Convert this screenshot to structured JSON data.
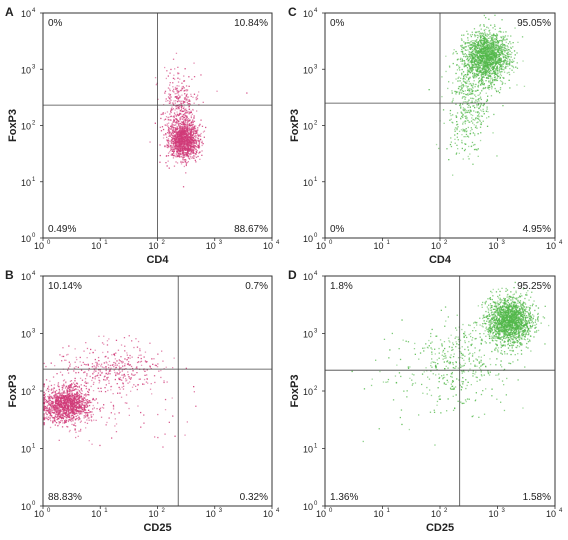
{
  "chart_data": [
    {
      "panel": "A",
      "type": "scatter",
      "xlabel": "CD4",
      "ylabel": "FoxP3",
      "xscale": "log",
      "yscale": "log",
      "xlim": [
        1,
        10000
      ],
      "ylim": [
        1,
        10000
      ],
      "xticks": [
        "10",
        "10",
        "10",
        "10",
        "10"
      ],
      "xtick_exp": [
        "0",
        "1",
        "2",
        "3",
        "4"
      ],
      "yticks": [
        "10",
        "10",
        "10",
        "10",
        "10"
      ],
      "ytick_exp": [
        "0",
        "1",
        "2",
        "3",
        "4"
      ],
      "gate": {
        "x": 100,
        "y": 230
      },
      "quadrants": {
        "upper_left": "0%",
        "upper_right": "10.84%",
        "lower_left": "0.49%",
        "lower_right": "88.67%"
      },
      "point_color": "#d03a78",
      "populations": [
        {
          "count": 1250,
          "x_center": 280,
          "y_center": 55,
          "x_spread": 0.13,
          "y_spread": 0.17
        },
        {
          "count": 320,
          "x_center": 230,
          "y_center": 240,
          "x_spread": 0.14,
          "y_spread": 0.28
        },
        {
          "count": 40,
          "x_center": 300,
          "y_center": 90,
          "x_spread": 0.35,
          "y_spread": 0.45
        }
      ],
      "grid": false
    },
    {
      "panel": "B",
      "type": "scatter",
      "xlabel": "CD25",
      "ylabel": "FoxP3",
      "xscale": "log",
      "yscale": "log",
      "xlim": [
        1,
        10000
      ],
      "ylim": [
        1,
        10000
      ],
      "xticks": [
        "10",
        "10",
        "10",
        "10",
        "10"
      ],
      "xtick_exp": [
        "0",
        "1",
        "2",
        "3",
        "4"
      ],
      "yticks": [
        "10",
        "10",
        "10",
        "10",
        "10"
      ],
      "ytick_exp": [
        "0",
        "1",
        "2",
        "3",
        "4"
      ],
      "gate": {
        "x": 230,
        "y": 240
      },
      "quadrants": {
        "upper_left": "10.14%",
        "upper_right": "0.7%",
        "lower_left": "88.83%",
        "lower_right": "0.32%"
      },
      "point_color": "#d03a78",
      "populations": [
        {
          "count": 1350,
          "x_center": 2.5,
          "y_center": 60,
          "x_spread": 0.2,
          "y_spread": 0.16
        },
        {
          "count": 380,
          "x_center": 15,
          "y_center": 250,
          "x_spread": 0.5,
          "y_spread": 0.22
        },
        {
          "count": 60,
          "x_center": 25,
          "y_center": 40,
          "x_spread": 0.7,
          "y_spread": 0.4
        }
      ],
      "grid": false
    },
    {
      "panel": "C",
      "type": "scatter",
      "xlabel": "CD4",
      "ylabel": "FoxP3",
      "xscale": "log",
      "yscale": "log",
      "xlim": [
        1,
        10000
      ],
      "ylim": [
        1,
        10000
      ],
      "xticks": [
        "10",
        "10",
        "10",
        "10",
        "10"
      ],
      "xtick_exp": [
        "0",
        "1",
        "2",
        "3",
        "4"
      ],
      "yticks": [
        "10",
        "10",
        "10",
        "10",
        "10"
      ],
      "ytick_exp": [
        "0",
        "1",
        "2",
        "3",
        "4"
      ],
      "gate": {
        "x": 100,
        "y": 250
      },
      "quadrants": {
        "upper_left": "0%",
        "upper_right": "95.05%",
        "lower_left": "0%",
        "lower_right": "4.95%"
      },
      "point_color": "#52b84a",
      "populations": [
        {
          "count": 1700,
          "x_center": 650,
          "y_center": 1700,
          "x_spread": 0.2,
          "y_spread": 0.22
        },
        {
          "count": 380,
          "x_center": 350,
          "y_center": 300,
          "x_spread": 0.2,
          "y_spread": 0.38
        },
        {
          "count": 60,
          "x_center": 220,
          "y_center": 70,
          "x_spread": 0.15,
          "y_spread": 0.3
        }
      ],
      "grid": false
    },
    {
      "panel": "D",
      "type": "scatter",
      "xlabel": "CD25",
      "ylabel": "FoxP3",
      "xscale": "log",
      "yscale": "log",
      "xlim": [
        1,
        10000
      ],
      "ylim": [
        1,
        10000
      ],
      "xticks": [
        "10",
        "10",
        "10",
        "10",
        "10"
      ],
      "xtick_exp": [
        "0",
        "1",
        "2",
        "3",
        "4"
      ],
      "yticks": [
        "10",
        "10",
        "10",
        "10",
        "10"
      ],
      "ytick_exp": [
        "0",
        "1",
        "2",
        "3",
        "4"
      ],
      "gate": {
        "x": 220,
        "y": 230
      },
      "quadrants": {
        "upper_left": "1.8%",
        "upper_right": "95.25%",
        "lower_left": "1.36%",
        "lower_right": "1.58%"
      },
      "point_color": "#52b84a",
      "populations": [
        {
          "count": 1800,
          "x_center": 1600,
          "y_center": 1700,
          "x_spread": 0.2,
          "y_spread": 0.2
        },
        {
          "count": 320,
          "x_center": 250,
          "y_center": 350,
          "x_spread": 0.42,
          "y_spread": 0.35
        },
        {
          "count": 120,
          "x_center": 60,
          "y_center": 180,
          "x_spread": 0.55,
          "y_spread": 0.45
        }
      ],
      "grid": false
    }
  ]
}
